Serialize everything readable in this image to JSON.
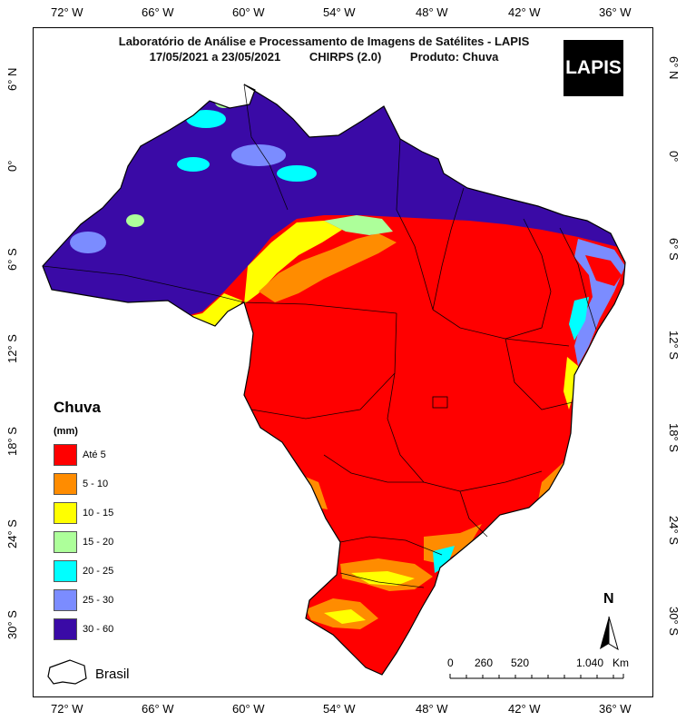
{
  "title": {
    "line1": "Laboratório de Análise e Processamento de Imagens de Satélites - LAPIS",
    "date_range": "17/05/2021  a 23/05/2021",
    "source": "CHIRPS (2.0)",
    "product": "Produto: Chuva"
  },
  "logo_text": "LAPIS",
  "lon_labels": [
    "72° W",
    "66° W",
    "60° W",
    "54° W",
    "48° W",
    "42° W",
    "36° W"
  ],
  "lat_labels": [
    "6° N",
    "0°",
    "6° S",
    "12° S",
    "18° S",
    "24° S",
    "30° S"
  ],
  "legend": {
    "title": "Chuva",
    "unit": "(mm)",
    "items": [
      {
        "label": "Até 5",
        "color": "#ff0000"
      },
      {
        "label": "5 - 10",
        "color": "#ff8c00"
      },
      {
        "label": "10 - 15",
        "color": "#ffff00"
      },
      {
        "label": "15 - 20",
        "color": "#adff9a"
      },
      {
        "label": "20 - 25",
        "color": "#00ffff"
      },
      {
        "label": "25 - 30",
        "color": "#7b8cff"
      },
      {
        "label": "30 - 60",
        "color": "#3a0aa6"
      }
    ],
    "boundary_label": "Brasil"
  },
  "scale_bar": {
    "ticks": [
      "0",
      "260",
      "520",
      "1.040"
    ],
    "unit": "Km"
  },
  "north_label": "N"
}
